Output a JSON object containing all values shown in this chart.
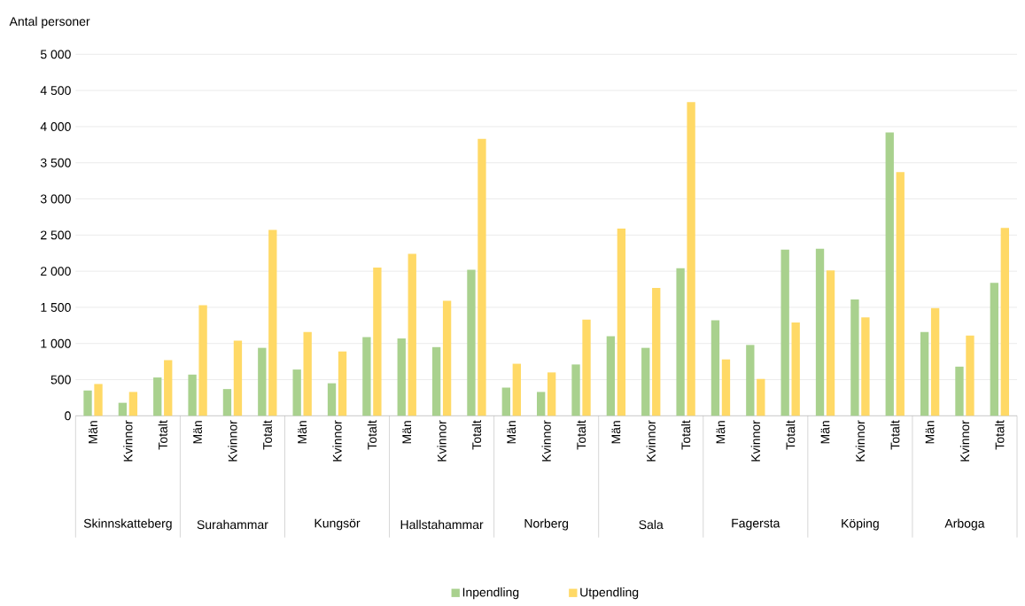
{
  "chart_data": {
    "type": "bar",
    "ylabel": "Antal personer",
    "categories": [
      "Män",
      "Kvinnor",
      "Totalt",
      "Män",
      "Kvinnor",
      "Totalt",
      "Män",
      "Kvinnor",
      "Totalt",
      "Män",
      "Kvinnor",
      "Totalt",
      "Män",
      "Kvinnor",
      "Totalt",
      "Män",
      "Kvinnor",
      "Totalt",
      "Män",
      "Kvinnor",
      "Totalt",
      "Män",
      "Kvinnor",
      "Totalt",
      "Män",
      "Kvinnor",
      "Totalt"
    ],
    "annotations": [
      "Skinnskatteberg",
      "Surahammar",
      "Kungsör",
      "Hallstahammar",
      "Norberg",
      "Sala",
      "Fagersta",
      "Köping",
      "Arboga"
    ],
    "series": [
      {
        "name": "Inpendling",
        "color": "#a9d18e",
        "values": [
          350,
          180,
          530,
          570,
          370,
          940,
          640,
          450,
          1090,
          1070,
          950,
          2020,
          390,
          330,
          710,
          1100,
          940,
          2040,
          1320,
          980,
          2300,
          2310,
          1610,
          3920,
          1160,
          680,
          1840
        ]
      },
      {
        "name": "Utpendling",
        "color": "#ffd966",
        "values": [
          440,
          330,
          770,
          1530,
          1040,
          2570,
          1160,
          890,
          2050,
          2240,
          1590,
          3830,
          720,
          600,
          1330,
          2590,
          1770,
          4340,
          780,
          510,
          1290,
          2010,
          1360,
          3370,
          1490,
          1110,
          2600
        ]
      }
    ],
    "ylim": [
      0,
      5000
    ],
    "yticks": [
      0,
      500,
      {
        "value": 1000,
        "label": "1 000"
      },
      {
        "value": 1500,
        "label": "1 500"
      },
      {
        "value": 2000,
        "label": "2 000"
      },
      {
        "value": 2500,
        "label": "2 500"
      },
      {
        "value": 3000,
        "label": "3 000"
      },
      {
        "value": 3500,
        "label": "3 500"
      },
      {
        "value": 4000,
        "label": "4 000"
      },
      {
        "value": 4500,
        "label": "4 500"
      },
      {
        "value": 5000,
        "label": "5 000"
      }
    ],
    "grid": "y",
    "legend": "bottom"
  }
}
